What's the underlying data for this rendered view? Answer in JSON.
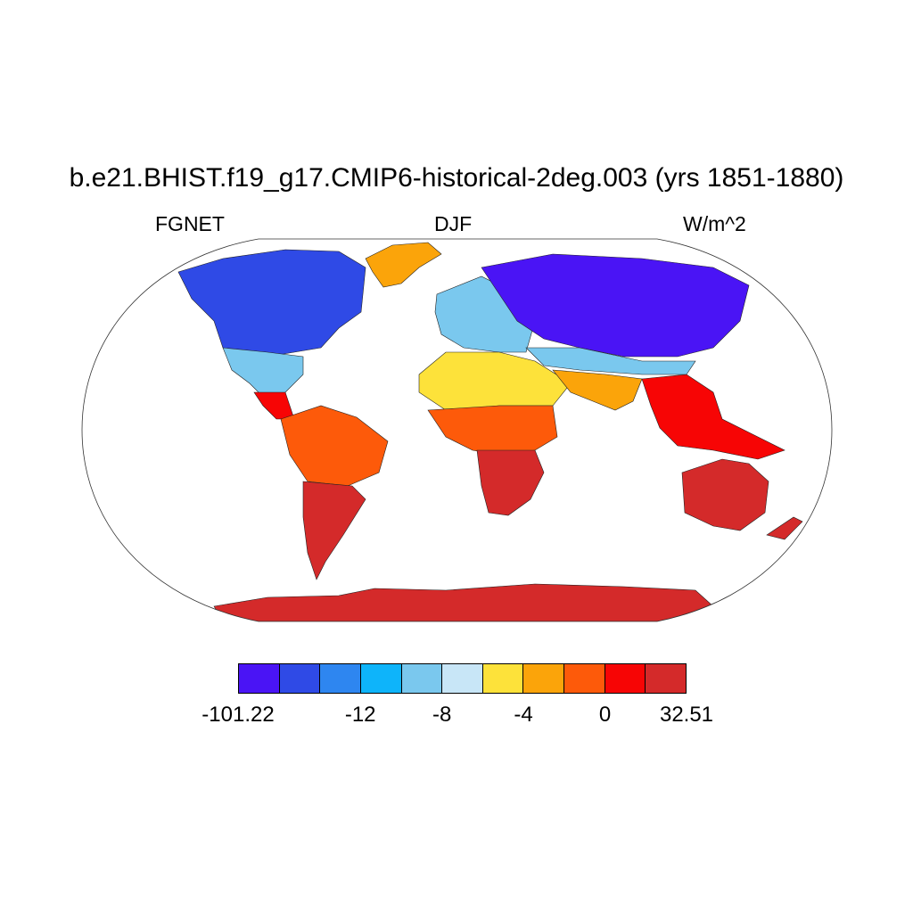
{
  "title": "b.e21.BHIST.f19_g17.CMIP6-historical-2deg.003 (yrs 1851-1880)",
  "subtitles": {
    "left": "FGNET",
    "center": "DJF",
    "right": "W/m^2"
  },
  "colorbar": {
    "colors": [
      "#4a14f5",
      "#2f4ae6",
      "#2e86f0",
      "#0eb4fa",
      "#7ac8ee",
      "#c8e6f7",
      "#fde23a",
      "#fba40a",
      "#fd5a0a",
      "#f70505",
      "#d42a2a"
    ],
    "tick_labels": [
      "-101.22",
      "-12",
      "-8",
      "-4",
      "0",
      "32.51"
    ]
  },
  "map": {
    "projection": "Robinson",
    "regions": [
      {
        "name": "antarctica",
        "level": 10
      },
      {
        "name": "australia",
        "level": 10
      },
      {
        "name": "southern-south-america",
        "level": 10
      },
      {
        "name": "southern-africa",
        "level": 10
      },
      {
        "name": "amazon",
        "level": 8
      },
      {
        "name": "central-africa",
        "level": 8
      },
      {
        "name": "sahara",
        "level": 6
      },
      {
        "name": "greenland",
        "level": 7
      },
      {
        "name": "canada",
        "level": 1
      },
      {
        "name": "siberia",
        "level": 0
      },
      {
        "name": "europe",
        "level": 4
      },
      {
        "name": "india",
        "level": 7
      },
      {
        "name": "southeast-asia",
        "level": 9
      }
    ]
  }
}
